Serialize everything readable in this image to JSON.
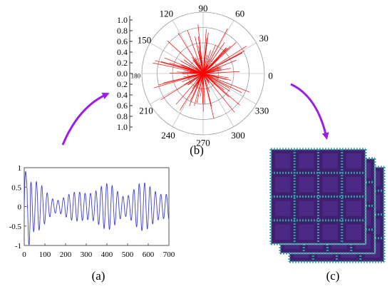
{
  "panels": {
    "a": {
      "label": "(a)",
      "y_ticks": [
        "1",
        "0.5",
        "0",
        "-0.5",
        "-1"
      ],
      "x_ticks": [
        "0",
        "100",
        "200",
        "300",
        "400",
        "500",
        "600",
        "700"
      ],
      "line_color": "#3d3dd9"
    },
    "b": {
      "label": "(b)",
      "radial_ticks": [
        "1.0",
        "0.8",
        "0.6",
        "0.4",
        "0.2",
        "0.0",
        "0.2",
        "0.4",
        "0.6",
        "0.8",
        "1.0"
      ],
      "angle_labels": [
        "90",
        "60",
        "30",
        "0",
        "330",
        "300",
        "270",
        "240",
        "210",
        "180",
        "150",
        "120"
      ],
      "spike_color": "#ff0000"
    },
    "c": {
      "label": "(c)",
      "colors": {
        "background": "#3f1f6e",
        "grid": "#2aa0a0",
        "cell": "#4a2a85"
      }
    }
  },
  "arrow_color": "#9b1de8",
  "chart_data": [
    {
      "type": "line",
      "xlim": [
        0,
        700
      ],
      "ylim": [
        -1,
        1
      ],
      "x_ticks": [
        0,
        100,
        200,
        300,
        400,
        500,
        600,
        700
      ],
      "y_ticks": [
        1,
        0.5,
        0,
        -0.5,
        -1
      ],
      "title": "",
      "xlabel": "",
      "ylabel": ""
    },
    {
      "type": "polar",
      "angle_ticks_deg": [
        0,
        30,
        60,
        90,
        120,
        150,
        180,
        210,
        240,
        270,
        300,
        330
      ],
      "rlim": [
        0,
        1
      ],
      "title": ""
    }
  ]
}
